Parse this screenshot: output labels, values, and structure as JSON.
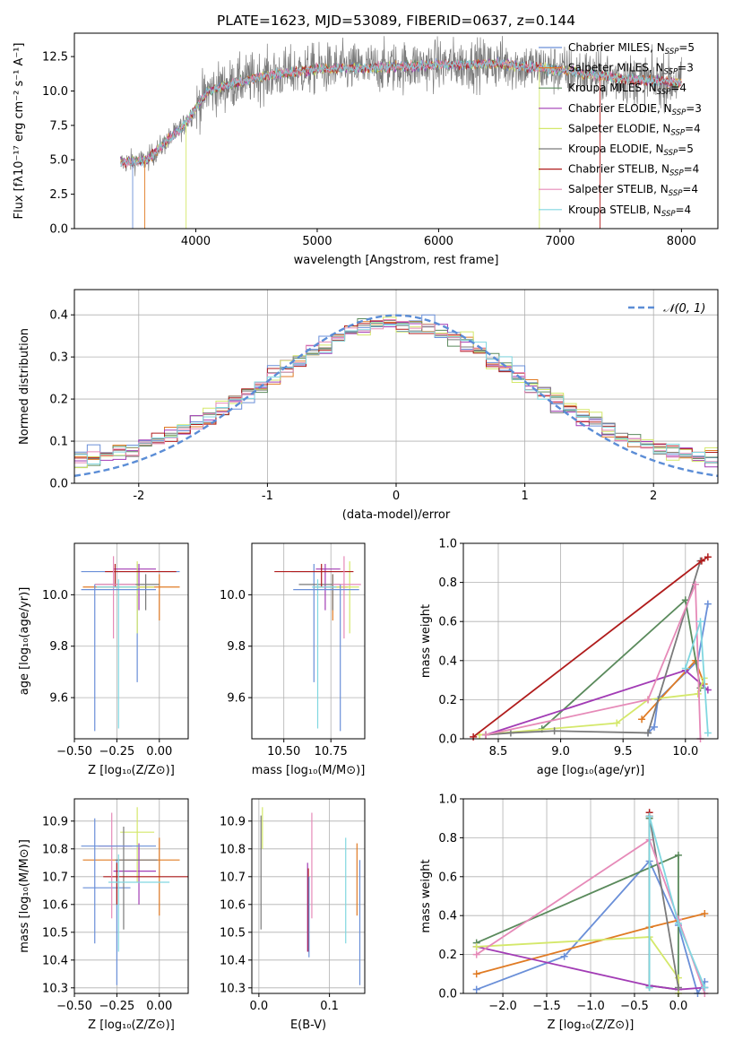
{
  "colors": {
    "palette": [
      "#6a8fd8",
      "#e07b24",
      "#5a8a5c",
      "#a23cb5",
      "#d4e86a",
      "#7a7a7a",
      "#b01c1c",
      "#e68ab8",
      "#80d7e0"
    ],
    "grid": "#b0b0b0",
    "normal_curve": "#5b8dd6"
  },
  "chart_data": [
    {
      "id": "spectrum",
      "type": "line",
      "title": "PLATE=1623, MJD=53089, FIBERID=0637, z=0.144",
      "xlabel": "wavelength [Angstrom, rest frame]",
      "ylabel": "Flux [fλ10⁻¹⁷ erg cm⁻² s⁻¹ A⁻¹]",
      "xlim": [
        3000,
        8300
      ],
      "ylim": [
        0,
        14.2
      ],
      "xticks": [
        4000,
        5000,
        6000,
        7000,
        8000
      ],
      "yticks": [
        0.0,
        2.5,
        5.0,
        7.5,
        10.0,
        12.5
      ],
      "grid": false,
      "legend_position": "top-right",
      "x_range": [
        3380,
        8000
      ],
      "continuum_anchors": [
        [
          3380,
          4.8
        ],
        [
          3600,
          5.0
        ],
        [
          3900,
          7.5
        ],
        [
          4100,
          10.0
        ],
        [
          4500,
          11.0
        ],
        [
          5000,
          11.6
        ],
        [
          5500,
          11.7
        ],
        [
          6000,
          11.9
        ],
        [
          6500,
          12.0
        ],
        [
          7000,
          11.5
        ],
        [
          7500,
          10.9
        ],
        [
          8000,
          10.6
        ]
      ],
      "legend": [
        {
          "label": "Chabrier MILES, N_SSP=5",
          "text": "Chabrier MILES, N",
          "sub": "SSP",
          "tail": "=5"
        },
        {
          "label": "Salpeter MILES, N_SSP=3",
          "text": "Salpeter MILES, N",
          "sub": "SSP",
          "tail": "=3"
        },
        {
          "label": "Kroupa MILES, N_SSP=4",
          "text": "Kroupa MILES, N",
          "sub": "SSP",
          "tail": "=4"
        },
        {
          "label": "Chabrier ELODIE, N_SSP=3",
          "text": "Chabrier ELODIE, N",
          "sub": "SSP",
          "tail": "=3"
        },
        {
          "label": "Salpeter ELODIE, N_SSP=4",
          "text": "Salpeter ELODIE, N",
          "sub": "SSP",
          "tail": "=4"
        },
        {
          "label": "Kroupa ELODIE, N_SSP=5",
          "text": "Kroupa ELODIE, N",
          "sub": "SSP",
          "tail": "=5"
        },
        {
          "label": "Chabrier STELIB, N_SSP=4",
          "text": "Chabrier STELIB, N",
          "sub": "SSP",
          "tail": "=4"
        },
        {
          "label": "Salpeter STELIB, N_SSP=4",
          "text": "Salpeter STELIB, N",
          "sub": "SSP",
          "tail": "=4"
        },
        {
          "label": "Kroupa STELIB, N_SSP=4",
          "text": "Kroupa STELIB, N",
          "sub": "SSP",
          "tail": "=4"
        }
      ],
      "model_color_index": [
        0,
        1,
        2,
        3,
        4,
        5,
        6,
        7,
        8
      ]
    },
    {
      "id": "residuals",
      "type": "bar",
      "xlabel": "(data-model)/error",
      "ylabel": "Normed distribution",
      "xlim": [
        -2.5,
        2.5
      ],
      "ylim": [
        0,
        0.46
      ],
      "xticks": [
        -2,
        -1,
        0,
        1,
        2
      ],
      "yticks": [
        0.0,
        0.1,
        0.2,
        0.3,
        0.4
      ],
      "grid": true,
      "legend_position": "top-right",
      "legend": [
        {
          "label": "𝒩(0, 1)"
        }
      ],
      "normal_curve": {
        "mean": 0,
        "sigma": 1
      },
      "bin_width": 0.1,
      "bin_range": [
        -2.5,
        2.5
      ]
    },
    {
      "id": "age-vs-Z",
      "type": "scatter",
      "xlabel": "Z [log₁₀(Z/Z⊙)]",
      "ylabel": "age  [log₁₀(age/yr)]",
      "xlim": [
        -0.5,
        0.17
      ],
      "ylim": [
        9.44,
        10.2
      ],
      "xticks": [
        -0.5,
        -0.25,
        0.0
      ],
      "xticklabels": [
        "−0.50",
        "−0.25",
        "0.00"
      ],
      "yticks": [
        9.6,
        9.8,
        10.0
      ],
      "yticklabels": [
        "9.6",
        "9.8",
        "10.0"
      ],
      "grid": true,
      "points": [
        {
          "x": -0.13,
          "y": 10.09,
          "xerr": [
            0.33,
            0.25
          ],
          "yerr": [
            0.43,
            0.03
          ],
          "c": 0
        },
        {
          "x": 0.0,
          "y": 10.03,
          "xerr": [
            0.45,
            0.12
          ],
          "yerr": [
            0.13,
            0.05
          ],
          "c": 1
        },
        {
          "x": -0.12,
          "y": 10.1,
          "xerr": [
            0.15,
            0.1
          ],
          "yerr": [
            0.16,
            0.02
          ],
          "c": 3
        },
        {
          "x": -0.13,
          "y": 10.03,
          "xerr": [
            0.1,
            0.1
          ],
          "yerr": [
            0.18,
            0.1
          ],
          "c": 4
        },
        {
          "x": -0.08,
          "y": 10.04,
          "xerr": [
            0.3,
            0.08
          ],
          "yerr": [
            0.1,
            0.04
          ],
          "c": 5
        },
        {
          "x": -0.26,
          "y": 10.09,
          "xerr": [
            0.06,
            0.36
          ],
          "yerr": [
            0.06,
            0.03
          ],
          "c": 6
        },
        {
          "x": -0.27,
          "y": 10.04,
          "xerr": [
            0.11,
            0.13
          ],
          "yerr": [
            0.21,
            0.11
          ],
          "c": 7
        },
        {
          "x": -0.24,
          "y": 10.03,
          "xerr": [
            0.13,
            0.11
          ],
          "yerr": [
            0.55,
            0.03
          ],
          "c": 8
        },
        {
          "x": -0.38,
          "y": 10.02,
          "xerr": [
            0.08,
            0.36
          ],
          "yerr": [
            0.55,
            0.02
          ],
          "c": 9
        }
      ]
    },
    {
      "id": "age-vs-mass",
      "type": "scatter",
      "xlabel": "mass [log₁₀(M/M⊙)]",
      "ylabel": "",
      "xlim": [
        10.33,
        10.93
      ],
      "ylim": [
        9.44,
        10.2
      ],
      "xticks": [
        10.5,
        10.75
      ],
      "xticklabels": [
        "10.50",
        "10.75"
      ],
      "yticks": [
        9.6,
        9.8,
        10.0
      ],
      "yticklabels": [
        "9.6",
        "9.8",
        "10.0"
      ],
      "grid": true,
      "points": [
        {
          "x": 10.66,
          "y": 10.09,
          "xerr": [
            0.12,
            0.15
          ],
          "yerr": [
            0.43,
            0.03
          ],
          "c": 0
        },
        {
          "x": 10.76,
          "y": 10.03,
          "xerr": [
            0.1,
            0.08
          ],
          "yerr": [
            0.13,
            0.05
          ],
          "c": 1
        },
        {
          "x": 10.72,
          "y": 10.1,
          "xerr": [
            0.05,
            0.08
          ],
          "yerr": [
            0.16,
            0.02
          ],
          "c": 3
        },
        {
          "x": 10.85,
          "y": 10.03,
          "xerr": [
            0.1,
            0.05
          ],
          "yerr": [
            0.18,
            0.1
          ],
          "c": 4
        },
        {
          "x": 10.76,
          "y": 10.04,
          "xerr": [
            0.18,
            0.04
          ],
          "yerr": [
            0.1,
            0.04
          ],
          "c": 5
        },
        {
          "x": 10.7,
          "y": 10.09,
          "xerr": [
            0.25,
            0.17
          ],
          "yerr": [
            0.06,
            0.03
          ],
          "c": 6
        },
        {
          "x": 10.82,
          "y": 10.04,
          "xerr": [
            0.06,
            0.09
          ],
          "yerr": [
            0.21,
            0.11
          ],
          "c": 7
        },
        {
          "x": 10.68,
          "y": 10.03,
          "xerr": [
            0.03,
            0.1
          ],
          "yerr": [
            0.55,
            0.03
          ],
          "c": 8
        },
        {
          "x": 10.8,
          "y": 10.02,
          "xerr": [
            0.25,
            0.1
          ],
          "yerr": [
            0.55,
            0.02
          ],
          "c": 9
        }
      ]
    },
    {
      "id": "massweight-vs-age",
      "type": "line",
      "xlabel": "age  [log₁₀(age/yr)]",
      "ylabel": "mass weight",
      "xlim": [
        8.22,
        10.26
      ],
      "ylim": [
        0,
        1.0
      ],
      "xticks": [
        8.5,
        9.0,
        9.5,
        10.0
      ],
      "xticklabels": [
        "8.5",
        "9.0",
        "9.5",
        "10.0"
      ],
      "yticks": [
        0.0,
        0.2,
        0.4,
        0.6,
        0.8,
        1.0
      ],
      "yticklabels": [
        "0.0",
        "0.2",
        "0.4",
        "0.6",
        "0.8",
        "1.0"
      ],
      "grid": true,
      "series": [
        {
          "c": 0,
          "x": [
            9.7,
            9.75,
            9.78,
            10.1,
            10.18
          ],
          "y": [
            0.03,
            0.06,
            0.2,
            0.4,
            0.69
          ]
        },
        {
          "c": 1,
          "x": [
            9.65,
            10.08,
            10.15
          ],
          "y": [
            0.1,
            0.4,
            0.28
          ]
        },
        {
          "c": 2,
          "x": [
            8.85,
            10.0,
            10.12
          ],
          "y": [
            0.05,
            0.71,
            0.26
          ]
        },
        {
          "c": 3,
          "x": [
            8.4,
            10.0,
            10.18
          ],
          "y": [
            0.02,
            0.35,
            0.25
          ]
        },
        {
          "c": 4,
          "x": [
            8.35,
            9.45,
            9.7,
            10.1,
            10.15
          ],
          "y": [
            0.02,
            0.08,
            0.2,
            0.23,
            0.31
          ]
        },
        {
          "c": 5,
          "x": [
            8.4,
            8.6,
            8.95,
            9.7,
            10.12
          ],
          "y": [
            0.02,
            0.03,
            0.04,
            0.03,
            0.91
          ]
        },
        {
          "c": 6,
          "x": [
            8.3,
            10.13,
            10.18
          ],
          "y": [
            0.01,
            0.91,
            0.93
          ]
        },
        {
          "c": 7,
          "x": [
            8.4,
            9.7,
            10.08,
            10.12
          ],
          "y": [
            0.02,
            0.2,
            0.79,
            0.0
          ]
        },
        {
          "c": 8,
          "x": [
            10.0,
            10.12,
            10.18
          ],
          "y": [
            0.36,
            0.6,
            0.03
          ]
        }
      ]
    },
    {
      "id": "mass-vs-Z",
      "type": "scatter",
      "xlabel": "Z [log₁₀(Z/Z⊙)]",
      "ylabel": "mass [log₁₀(M/M⊙)]",
      "xlim": [
        -0.5,
        0.17
      ],
      "ylim": [
        10.28,
        10.98
      ],
      "xticks": [
        -0.5,
        -0.25,
        0.0
      ],
      "xticklabels": [
        "−0.50",
        "−0.25",
        "0.00"
      ],
      "yticks": [
        10.3,
        10.4,
        10.5,
        10.6,
        10.7,
        10.8,
        10.9
      ],
      "yticklabels": [
        "10.3",
        "10.4",
        "10.5",
        "10.6",
        "10.7",
        "10.8",
        "10.9"
      ],
      "grid": true,
      "points": [
        {
          "x": -0.25,
          "y": 10.66,
          "xerr": [
            0.2,
            0.08
          ],
          "yerr": [
            0.35,
            0.1
          ],
          "c": 0
        },
        {
          "x": 0.0,
          "y": 10.76,
          "xerr": [
            0.45,
            0.12
          ],
          "yerr": [
            0.2,
            0.08
          ],
          "c": 1
        },
        {
          "x": -0.12,
          "y": 10.72,
          "xerr": [
            0.15,
            0.1
          ],
          "yerr": [
            0.12,
            0.1
          ],
          "c": 3
        },
        {
          "x": -0.13,
          "y": 10.86,
          "xerr": [
            0.1,
            0.1
          ],
          "yerr": [
            0.18,
            0.09
          ],
          "c": 4
        },
        {
          "x": -0.21,
          "y": 10.76,
          "xerr": [
            0.05,
            0.2
          ],
          "yerr": [
            0.25,
            0.12
          ],
          "c": 5
        },
        {
          "x": -0.25,
          "y": 10.7,
          "xerr": [
            0.08,
            0.42
          ],
          "yerr": [
            0.1,
            0.05
          ],
          "c": 6
        },
        {
          "x": -0.28,
          "y": 10.81,
          "xerr": [
            0.08,
            0.12
          ],
          "yerr": [
            0.26,
            0.12
          ],
          "c": 7
        },
        {
          "x": -0.24,
          "y": 10.68,
          "xerr": [
            0.06,
            0.3
          ],
          "yerr": [
            0.25,
            0.1
          ],
          "c": 8
        },
        {
          "x": -0.38,
          "y": 10.81,
          "xerr": [
            0.08,
            0.36
          ],
          "yerr": [
            0.35,
            0.1
          ],
          "c": 9
        }
      ]
    },
    {
      "id": "mass-vs-EBV",
      "type": "scatter",
      "xlabel": "E(B-V)",
      "ylabel": "",
      "xlim": [
        -0.01,
        0.15
      ],
      "ylim": [
        10.28,
        10.98
      ],
      "xticks": [
        0.0,
        0.1
      ],
      "xticklabels": [
        "0.0",
        "0.1"
      ],
      "yticks": [
        10.3,
        10.4,
        10.5,
        10.6,
        10.7,
        10.8,
        10.9
      ],
      "yticklabels": [
        "10.3",
        "10.4",
        "10.5",
        "10.6",
        "10.7",
        "10.8",
        "10.9"
      ],
      "grid": true,
      "segments": [
        {
          "x": 0.143,
          "y0": 10.31,
          "y1": 10.76,
          "c": 0
        },
        {
          "x": 0.139,
          "y0": 10.56,
          "y1": 10.82,
          "c": 1
        },
        {
          "x": 0.069,
          "y0": 10.43,
          "y1": 10.75,
          "c": 3
        },
        {
          "x": 0.005,
          "y0": 10.8,
          "y1": 10.95,
          "c": 4
        },
        {
          "x": 0.003,
          "y0": 10.51,
          "y1": 10.92,
          "c": 5
        },
        {
          "x": 0.07,
          "y0": 10.43,
          "y1": 10.73,
          "c": 6
        },
        {
          "x": 0.075,
          "y0": 10.55,
          "y1": 10.93,
          "c": 7
        },
        {
          "x": 0.123,
          "y0": 10.46,
          "y1": 10.84,
          "c": 8
        },
        {
          "x": 0.071,
          "y0": 10.41,
          "y1": 10.7,
          "c": 9
        }
      ]
    },
    {
      "id": "massweight-vs-Z",
      "type": "line",
      "xlabel": "Z [log₁₀(Z/Z⊙)]",
      "ylabel": "mass weight",
      "xlim": [
        -2.45,
        0.45
      ],
      "ylim": [
        0,
        1.0
      ],
      "xticks": [
        -2.0,
        -1.5,
        -1.0,
        -0.5,
        0.0
      ],
      "xticklabels": [
        "−2.0",
        "−1.5",
        "−1.0",
        "−0.5",
        "0.0"
      ],
      "yticks": [
        0.0,
        0.2,
        0.4,
        0.6,
        0.8,
        1.0
      ],
      "yticklabels": [
        "0.0",
        "0.2",
        "0.4",
        "0.6",
        "0.8",
        "1.0"
      ],
      "grid": true,
      "series": [
        {
          "c": 0,
          "x": [
            -2.3,
            -1.3,
            -0.33,
            0.0,
            0.22,
            0.3
          ],
          "y": [
            0.02,
            0.19,
            0.68,
            0.35,
            0.0,
            0.06
          ]
        },
        {
          "c": 1,
          "x": [
            -2.3,
            -0.33,
            0.3
          ],
          "y": [
            0.1,
            0.34,
            0.41
          ]
        },
        {
          "c": 2,
          "x": [
            -2.3,
            0.0,
            0.0,
            -0.33,
            -0.33
          ],
          "y": [
            0.26,
            0.71,
            0.02,
            0.04,
            0.9
          ]
        },
        {
          "c": 3,
          "x": [
            -2.3,
            -0.33,
            0.0,
            0.3
          ],
          "y": [
            0.24,
            0.04,
            0.02,
            0.03
          ]
        },
        {
          "c": 4,
          "x": [
            -2.3,
            -0.33,
            0.0,
            0.0
          ],
          "y": [
            0.24,
            0.29,
            0.08,
            0.0
          ]
        },
        {
          "c": 5,
          "x": [
            -0.33,
            -0.33,
            0.0
          ],
          "y": [
            0.03,
            0.91,
            0.03
          ]
        },
        {
          "c": 6,
          "x": [
            -0.33,
            -0.33
          ],
          "y": [
            0.91,
            0.93
          ]
        },
        {
          "c": 7,
          "x": [
            -2.3,
            -0.33,
            0.0,
            0.3
          ],
          "y": [
            0.2,
            0.79,
            0.38,
            0.0
          ]
        },
        {
          "c": 8,
          "x": [
            -0.33,
            -0.33,
            0.0,
            0.3
          ],
          "y": [
            0.03,
            0.91,
            0.36,
            0.03
          ]
        }
      ]
    }
  ]
}
